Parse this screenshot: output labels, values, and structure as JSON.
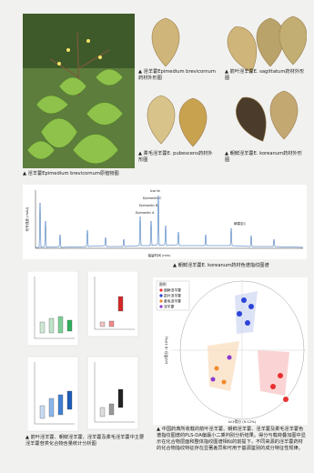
{
  "plant_photo": {
    "caption": "▲ 淫羊藿Epimedium brevicornum原植物图"
  },
  "herb_photos": [
    {
      "caption": "▲ 淫羊藿Epimedium brevicornum药材外形图"
    },
    {
      "caption": "▲ 箭叶淫羊藿E. sagittatum药材外形图"
    },
    {
      "caption": "▲ 柔毛淫羊藿E. pubescens药材外形图"
    },
    {
      "caption": "▲ 朝鲜淫羊藿E. koreanum药材外形图"
    }
  ],
  "chromatogram": {
    "caption": "▲ 朝鲜淫羊藿E. koreanum药材色谱指纹图谱",
    "x_label": "保留时间 (min)",
    "y_label": "信号强度 (mAU)",
    "peak_labels": [
      "Icariin",
      "Epimedin C",
      "Epimedin B",
      "Epimedin A",
      "朝藿定C"
    ]
  },
  "boxplots": {
    "caption": "▲ 箭叶淫羊藿、朝鲜淫羊藿、淫羊藿及柔毛淫羊藿中主要淫羊藿苷类化合物含量统计分析图"
  },
  "plsda": {
    "caption": "▲ 中国药典所收载的箭叶淫羊藿、朝鲜淫羊藿、淫羊藿及柔毛淫羊藿色谱指纹图谱的PLS-DA偏最小二乘判别分析结果。得分与载荷叠加图中显示在化合物层面和整体指纹图谱相似的前提下，不同来源的淫羊藿药材的化合物指纹特征存在显著差异和可用于基源鉴别的成分特征性规律。",
    "legend_title": "图例",
    "legend": [
      "朝鲜淫羊藿",
      "箭叶淫羊藿",
      "柔毛淫羊藿",
      "淫羊藿"
    ],
    "x_label": "LV1得分 (9.12%)",
    "y_label": "LV2得分 (6.15%)"
  }
}
